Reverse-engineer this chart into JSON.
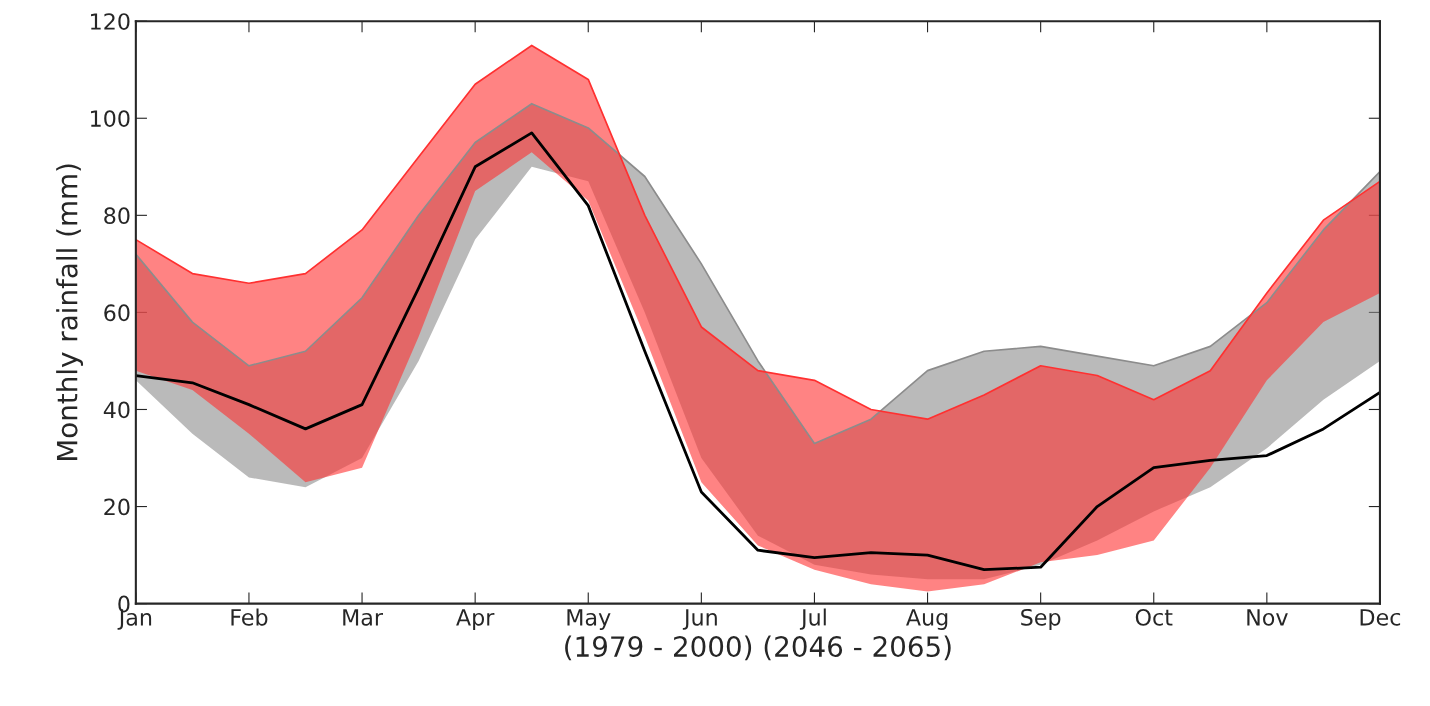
{
  "chart_data": {
    "type": "line",
    "xlabel": "(1979 - 2000) (2046 - 2065)",
    "ylabel": "Monthly rainfall (mm)",
    "ylim": [
      0,
      120
    ],
    "yticks": [
      0,
      20,
      40,
      60,
      80,
      100,
      120
    ],
    "categories": [
      "Jan",
      null,
      "Feb",
      null,
      "Mar",
      null,
      "Apr",
      null,
      "May",
      null,
      "Jun",
      null,
      "Jul",
      null,
      "Aug",
      null,
      "Sep",
      null,
      "Oct",
      null,
      "Nov",
      null,
      "Dec"
    ],
    "grid": false,
    "legend": false,
    "marker": "none",
    "line_style": "solid",
    "series": [
      {
        "type": "line",
        "color": "#8c8c8c",
        "lower": [
          46,
          35,
          26,
          24,
          30,
          50,
          75,
          90,
          87,
          60,
          30,
          14,
          8,
          6,
          5,
          5,
          8,
          13,
          19,
          24,
          32,
          42,
          50
        ],
        "upper": [
          72,
          58,
          49,
          52,
          63,
          80,
          95,
          103,
          98,
          88,
          70,
          50,
          33,
          38,
          48,
          52,
          53,
          51,
          49,
          53,
          62,
          77,
          89
        ],
        "values": [
          72,
          58,
          49,
          52,
          63,
          80,
          95,
          103,
          98,
          88,
          70,
          50,
          33,
          38,
          48,
          52,
          53,
          51,
          49,
          53,
          62,
          77,
          89
        ]
      },
      {
        "type": "line",
        "color": "#ff3030",
        "lower": [
          48,
          44,
          35,
          25,
          28,
          55,
          85,
          93,
          83,
          55,
          25,
          12,
          7,
          4,
          2.5,
          4,
          8.5,
          10,
          13,
          28,
          46,
          58,
          64
        ],
        "upper": [
          75,
          68,
          66,
          68,
          77,
          92,
          107,
          115,
          108,
          80,
          57,
          48,
          46,
          40,
          38,
          43,
          49,
          47,
          42,
          48,
          64,
          79,
          87
        ],
        "values": [
          75,
          68,
          66,
          68,
          77,
          92,
          107,
          115,
          108,
          80,
          57,
          48,
          46,
          40,
          38,
          43,
          49,
          47,
          42,
          48,
          64,
          79,
          87
        ]
      },
      {
        "color": "#000000",
        "values": [
          47,
          45.5,
          41,
          36,
          41,
          65,
          90,
          97,
          82,
          52,
          23,
          11,
          9.5,
          10.5,
          10,
          7,
          7.5,
          20,
          28,
          29.5,
          30.5,
          36,
          43.5
        ]
      }
    ]
  }
}
